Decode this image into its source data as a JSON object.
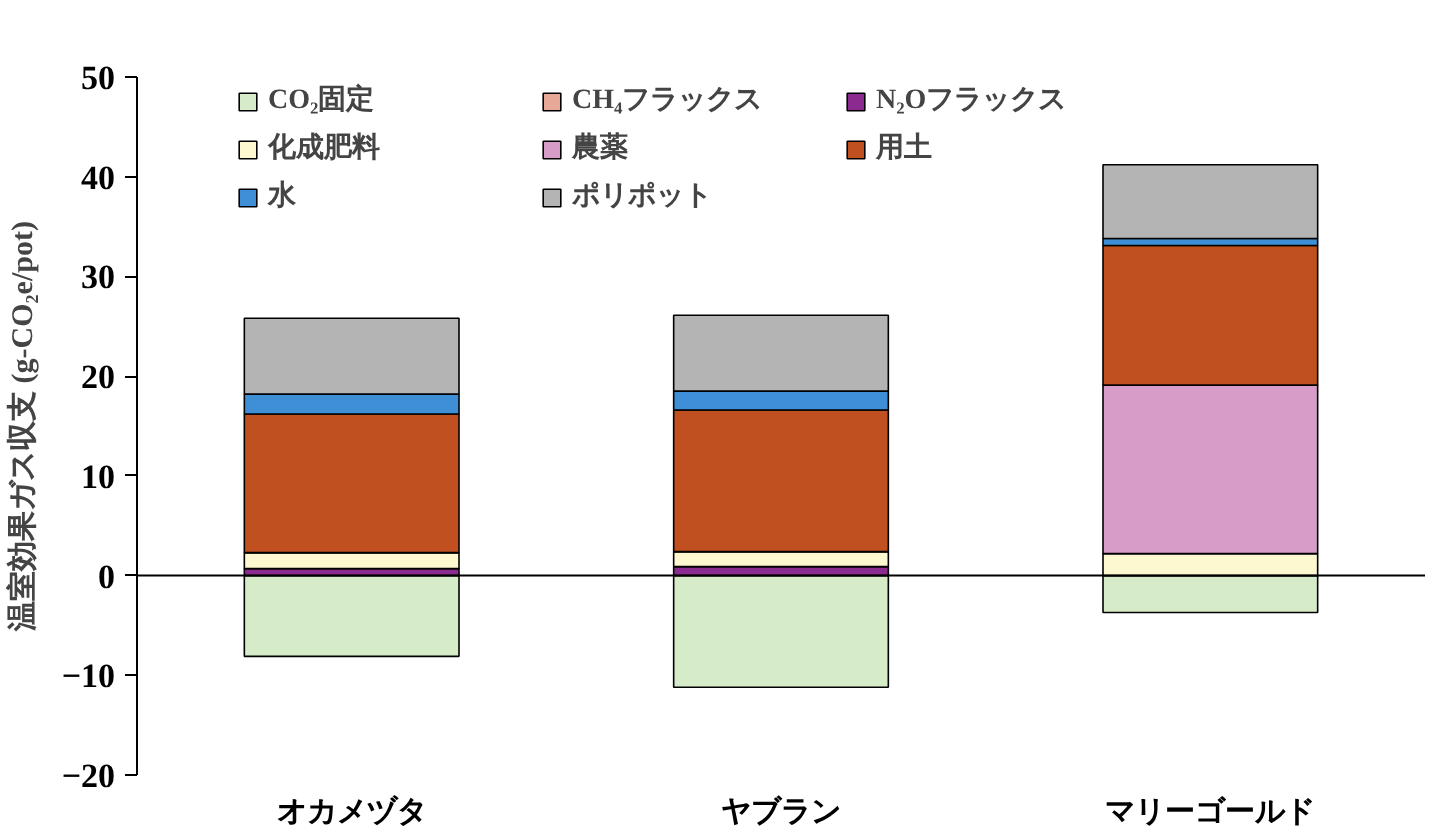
{
  "chart_data": {
    "type": "bar",
    "stacked": true,
    "ylabel": "温室効果ガス収支 (g-CO₂e/pot)",
    "categories": [
      "オカメヅタ",
      "ヤブラン",
      "マリーゴールド"
    ],
    "series": [
      {
        "name": "CO₂固定",
        "color": "#d6ecc8",
        "values": [
          -8.1,
          -11.2,
          -3.7
        ]
      },
      {
        "name": "CH₄フラックス",
        "color": "#e8a898",
        "values": [
          0,
          0,
          0
        ]
      },
      {
        "name": "N₂Oフラックス",
        "color": "#8b2a8f",
        "values": [
          0.7,
          0.9,
          null
        ]
      },
      {
        "name": "化成肥料",
        "color": "#fdf8d0",
        "values": [
          1.6,
          1.5,
          2.2
        ]
      },
      {
        "name": "農薬",
        "color": "#d89cc8",
        "values": [
          0,
          0,
          16.9
        ]
      },
      {
        "name": "用土",
        "color": "#c0501f",
        "values": [
          13.9,
          14.2,
          14.0
        ]
      },
      {
        "name": "水",
        "color": "#3f8fd6",
        "values": [
          2.0,
          1.9,
          0.7
        ]
      },
      {
        "name": "ポリポット",
        "color": "#b4b4b4",
        "values": [
          7.6,
          7.6,
          7.4
        ]
      }
    ],
    "ylim": [
      -20,
      50
    ],
    "yticks": [
      -20,
      -10,
      0,
      10,
      20,
      30,
      40,
      50
    ],
    "ref_lines": [
      {
        "axis": "y",
        "value": 0,
        "color": "#000000"
      }
    ],
    "legend": "top left"
  }
}
